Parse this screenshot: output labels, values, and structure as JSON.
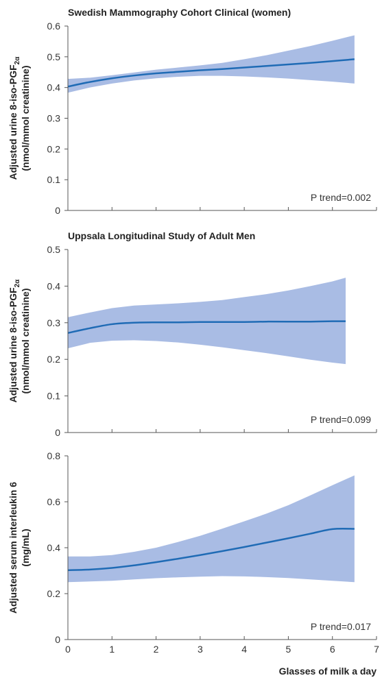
{
  "chart_data": [
    {
      "type": "line",
      "title": "Swedish Mammography Cohort Clinical (women)",
      "ylabel_line1": "Adjusted urine 8-iso-PGF",
      "ylabel_sub": "2α",
      "ylabel_line2": "(nmol/mmol creatinine)",
      "xlabel": "",
      "xlim": [
        0,
        7
      ],
      "ylim": [
        0,
        0.6
      ],
      "xticks": [
        0,
        1,
        2,
        3,
        4,
        5,
        6,
        7
      ],
      "yticks": [
        0,
        0.1,
        0.2,
        0.3,
        0.4,
        0.5,
        0.6
      ],
      "ytick_labels": [
        "0",
        "0.1",
        "0.2",
        "0.3",
        "0.4",
        "0.5",
        "0.6"
      ],
      "show_x_tick_labels": false,
      "annotation": "P trend=0.002",
      "grid": false,
      "x": [
        0,
        0.5,
        1,
        1.5,
        2,
        2.5,
        3,
        3.5,
        4,
        4.5,
        5,
        5.5,
        6,
        6.5
      ],
      "y": [
        0.403,
        0.418,
        0.43,
        0.439,
        0.446,
        0.451,
        0.456,
        0.46,
        0.465,
        0.47,
        0.475,
        0.48,
        0.486,
        0.492
      ],
      "lower": [
        0.383,
        0.4,
        0.413,
        0.423,
        0.43,
        0.435,
        0.438,
        0.438,
        0.436,
        0.433,
        0.429,
        0.424,
        0.419,
        0.413
      ],
      "upper": [
        0.428,
        0.432,
        0.44,
        0.449,
        0.458,
        0.465,
        0.472,
        0.48,
        0.492,
        0.505,
        0.52,
        0.535,
        0.552,
        0.57
      ]
    },
    {
      "type": "line",
      "title": "Uppsala Longitudinal Study of Adult Men",
      "ylabel_line1": "Adjusted urine 8-iso-PGF",
      "ylabel_sub": "2α",
      "ylabel_line2": "(nmol/mmol creatinine)",
      "xlabel": "",
      "xlim": [
        0,
        7
      ],
      "ylim": [
        0,
        0.5
      ],
      "xticks": [
        0,
        1,
        2,
        3,
        4,
        5,
        6,
        7
      ],
      "yticks": [
        0,
        0.1,
        0.2,
        0.3,
        0.4,
        0.5
      ],
      "ytick_labels": [
        "0",
        "0.1",
        "0.2",
        "0.3",
        "0.4",
        "0.5"
      ],
      "show_x_tick_labels": false,
      "annotation": "P trend=0.099",
      "grid": false,
      "x": [
        0,
        0.5,
        1,
        1.5,
        2,
        2.5,
        3,
        3.5,
        4,
        4.5,
        5,
        5.5,
        6,
        6.3
      ],
      "y": [
        0.272,
        0.285,
        0.296,
        0.3,
        0.301,
        0.301,
        0.302,
        0.302,
        0.302,
        0.303,
        0.303,
        0.303,
        0.304,
        0.304
      ],
      "lower": [
        0.23,
        0.245,
        0.251,
        0.252,
        0.25,
        0.246,
        0.24,
        0.233,
        0.225,
        0.217,
        0.208,
        0.199,
        0.191,
        0.187
      ],
      "upper": [
        0.315,
        0.328,
        0.34,
        0.347,
        0.35,
        0.353,
        0.357,
        0.362,
        0.37,
        0.378,
        0.388,
        0.4,
        0.413,
        0.423
      ]
    },
    {
      "type": "line",
      "title": "",
      "ylabel_line1": "Adjusted serum interleukin 6",
      "ylabel_sub": "",
      "ylabel_line2": "(mg/mL)",
      "xlabel": "Glasses of milk a day",
      "xlim": [
        0,
        7
      ],
      "ylim": [
        0,
        0.8
      ],
      "xticks": [
        0,
        1,
        2,
        3,
        4,
        5,
        6,
        7
      ],
      "yticks": [
        0,
        0.2,
        0.4,
        0.6,
        0.8
      ],
      "ytick_labels": [
        "0",
        "0.2",
        "0.4",
        "0.6",
        "0.8"
      ],
      "show_x_tick_labels": true,
      "annotation": "P trend=0.017",
      "grid": false,
      "x": [
        0,
        0.5,
        1,
        1.5,
        2,
        2.5,
        3,
        3.5,
        4,
        4.5,
        5,
        5.5,
        6,
        6.5
      ],
      "y": [
        0.302,
        0.305,
        0.312,
        0.323,
        0.337,
        0.352,
        0.368,
        0.385,
        0.403,
        0.422,
        0.441,
        0.461,
        0.481,
        0.482
      ],
      "lower": [
        0.25,
        0.253,
        0.256,
        0.262,
        0.267,
        0.271,
        0.274,
        0.276,
        0.275,
        0.272,
        0.268,
        0.262,
        0.256,
        0.25
      ],
      "upper": [
        0.362,
        0.362,
        0.368,
        0.382,
        0.4,
        0.425,
        0.452,
        0.483,
        0.515,
        0.548,
        0.585,
        0.628,
        0.672,
        0.715
      ]
    }
  ],
  "colors": {
    "line": "#1f6bb5",
    "band": "#a9bce4",
    "axis": "#555555",
    "text": "#222222"
  }
}
